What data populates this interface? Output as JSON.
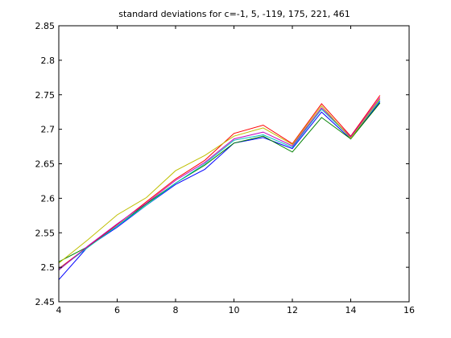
{
  "chart_data": {
    "type": "line",
    "title": "standard deviations for c=-1, 5, -119, 175, 221, 461",
    "xlabel": "",
    "ylabel": "",
    "xlim": [
      4,
      16
    ],
    "ylim": [
      2.45,
      2.85
    ],
    "xticks": [
      "4",
      "6",
      "8",
      "10",
      "12",
      "14",
      "16"
    ],
    "yticks": [
      "2.45",
      "2.5",
      "2.55",
      "2.6",
      "2.65",
      "2.7",
      "2.75",
      "2.8",
      "2.85"
    ],
    "grid": false,
    "legend": "none",
    "x": [
      4,
      5,
      6,
      7,
      8,
      9,
      10,
      11,
      12,
      13,
      14,
      15
    ],
    "series": [
      {
        "color": "#0000ff",
        "values": [
          2.482,
          2.53,
          2.558,
          2.59,
          2.62,
          2.642,
          2.68,
          2.688,
          2.672,
          2.725,
          2.686,
          2.74
        ]
      },
      {
        "color": "#008000",
        "values": [
          2.508,
          2.53,
          2.56,
          2.592,
          2.622,
          2.648,
          2.68,
          2.69,
          2.667,
          2.717,
          2.686,
          2.738
        ]
      },
      {
        "color": "#ff0000",
        "values": [
          2.498,
          2.53,
          2.562,
          2.595,
          2.628,
          2.655,
          2.694,
          2.706,
          2.679,
          2.737,
          2.69,
          2.749
        ]
      },
      {
        "color": "#00bfbf",
        "values": [
          2.497,
          2.529,
          2.56,
          2.59,
          2.622,
          2.65,
          2.684,
          2.692,
          2.674,
          2.729,
          2.688,
          2.742
        ]
      },
      {
        "color": "#bf00bf",
        "values": [
          2.496,
          2.531,
          2.563,
          2.593,
          2.626,
          2.652,
          2.686,
          2.696,
          2.676,
          2.731,
          2.689,
          2.746
        ]
      },
      {
        "color": "#bfbf00",
        "values": [
          2.506,
          2.54,
          2.576,
          2.601,
          2.64,
          2.662,
          2.69,
          2.702,
          2.678,
          2.734,
          2.687,
          2.744
        ]
      }
    ]
  }
}
